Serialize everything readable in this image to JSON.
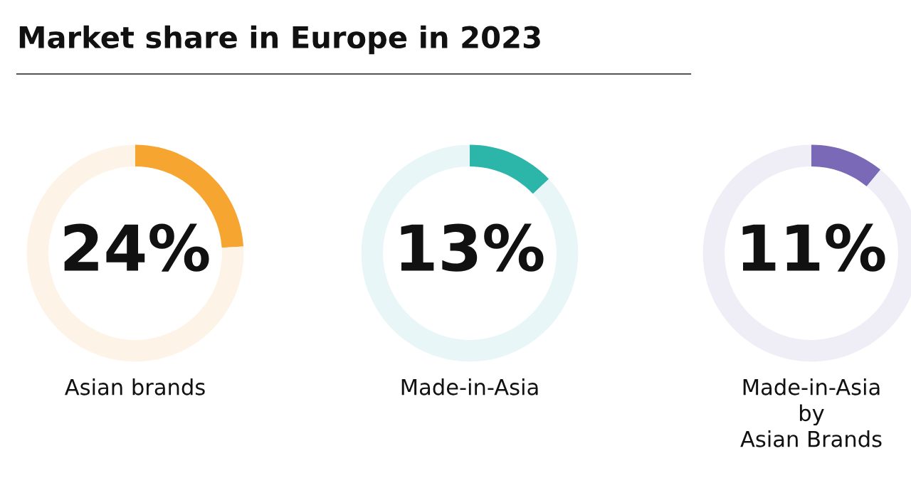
{
  "chart_data": [
    {
      "type": "donut",
      "title": "Market share in Europe in 2023",
      "xlabel": "Asian brands",
      "categories": [
        null,
        null
      ],
      "values": [
        24,
        76
      ],
      "colors": [
        "#f6a531",
        "#fdf3e6"
      ],
      "value_labels": [
        "24%",
        null
      ]
    },
    {
      "type": "donut",
      "xlabel": "Made-in-Asia",
      "categories": [
        null,
        null
      ],
      "values": [
        13,
        87
      ],
      "colors": [
        "#2cb5a9",
        "#e9f6f7"
      ],
      "value_labels": [
        "13%",
        null
      ]
    },
    {
      "type": "donut",
      "xlabel": "Made-in-Asia\nby\nAsian Brands",
      "categories": [
        null,
        null
      ],
      "values": [
        11,
        89
      ],
      "colors": [
        "#7a69b6",
        "#efeef6"
      ],
      "value_labels": [
        "11%",
        null
      ]
    }
  ]
}
